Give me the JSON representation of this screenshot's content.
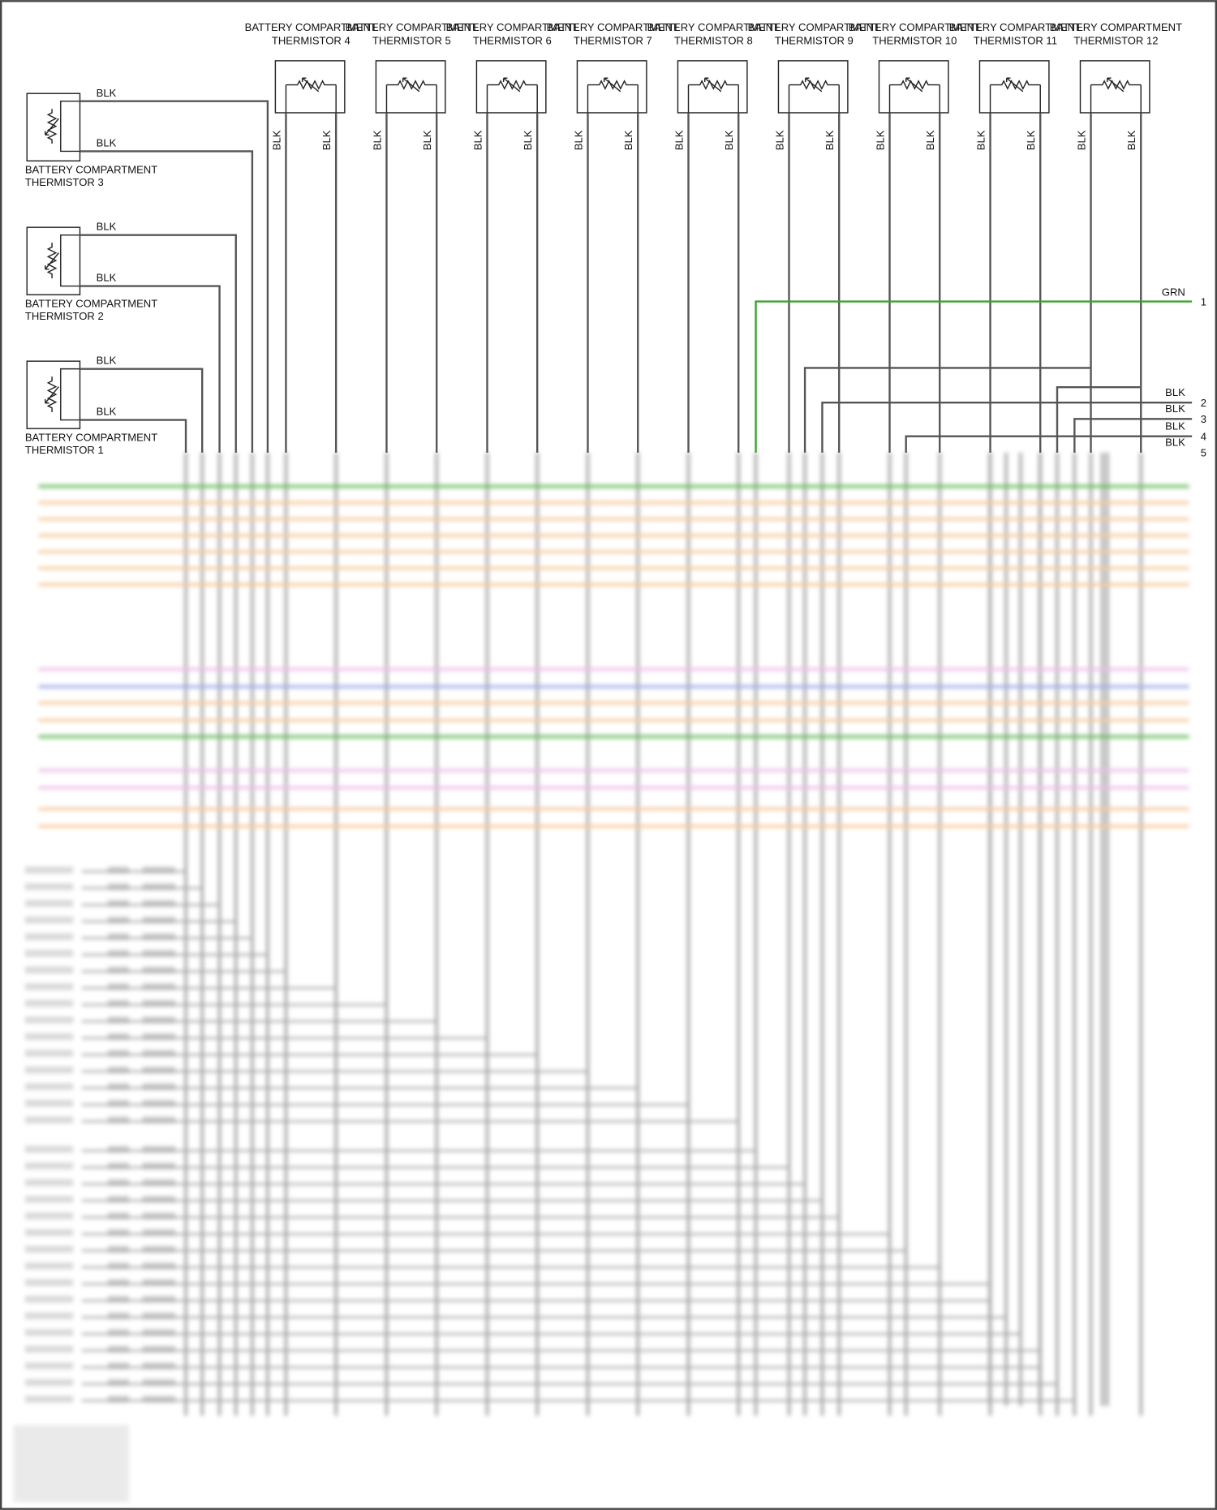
{
  "colors": {
    "wire_black": "#555555",
    "wire_green": "#3aa52a",
    "wire_orange": "#f5b77a",
    "wire_pink": "#e8a6e0",
    "wire_blue": "#7f8fe0",
    "border": "#444444"
  },
  "top_thermistors": [
    {
      "line1": "BATTERY COMPARTMENT",
      "line2": "THERMISTOR 4",
      "wire_left": "BLK",
      "wire_right": "BLK"
    },
    {
      "line1": "BATTERY COMPARTMENT",
      "line2": "THERMISTOR 5",
      "wire_left": "BLK",
      "wire_right": "BLK"
    },
    {
      "line1": "BATTERY COMPARTMENT",
      "line2": "THERMISTOR 6",
      "wire_left": "BLK",
      "wire_right": "BLK"
    },
    {
      "line1": "BATTERY COMPARTMENT",
      "line2": "THERMISTOR 7",
      "wire_left": "BLK",
      "wire_right": "BLK"
    },
    {
      "line1": "BATTERY COMPARTMENT",
      "line2": "THERMISTOR 8",
      "wire_left": "BLK",
      "wire_right": "BLK"
    },
    {
      "line1": "BATTERY COMPARTMENT",
      "line2": "THERMISTOR 9",
      "wire_left": "BLK",
      "wire_right": "BLK"
    },
    {
      "line1": "BATTERY COMPARTMENT",
      "line2": "THERMISTOR 10",
      "wire_left": "BLK",
      "wire_right": "BLK"
    },
    {
      "line1": "BATTERY COMPARTMENT",
      "line2": "THERMISTOR 11",
      "wire_left": "BLK",
      "wire_right": "BLK"
    },
    {
      "line1": "BATTERY COMPARTMENT",
      "line2": "THERMISTOR 12",
      "wire_left": "BLK",
      "wire_right": "BLK"
    }
  ],
  "left_thermistors": [
    {
      "line1": "BATTERY COMPARTMENT",
      "line2": "THERMISTOR 3",
      "wire_top": "BLK",
      "wire_bottom": "BLK"
    },
    {
      "line1": "BATTERY COMPARTMENT",
      "line2": "THERMISTOR 2",
      "wire_top": "BLK",
      "wire_bottom": "BLK"
    },
    {
      "line1": "BATTERY COMPARTMENT",
      "line2": "THERMISTOR 1",
      "wire_top": "BLK",
      "wire_bottom": "BLK"
    }
  ],
  "connector_pins": [
    {
      "pin": "1",
      "wire": "GRN"
    },
    {
      "pin": "2",
      "wire": "BLK"
    },
    {
      "pin": "3",
      "wire": "BLK"
    },
    {
      "pin": "4",
      "wire": "BLK"
    },
    {
      "pin": "5",
      "wire": "BLK"
    }
  ]
}
